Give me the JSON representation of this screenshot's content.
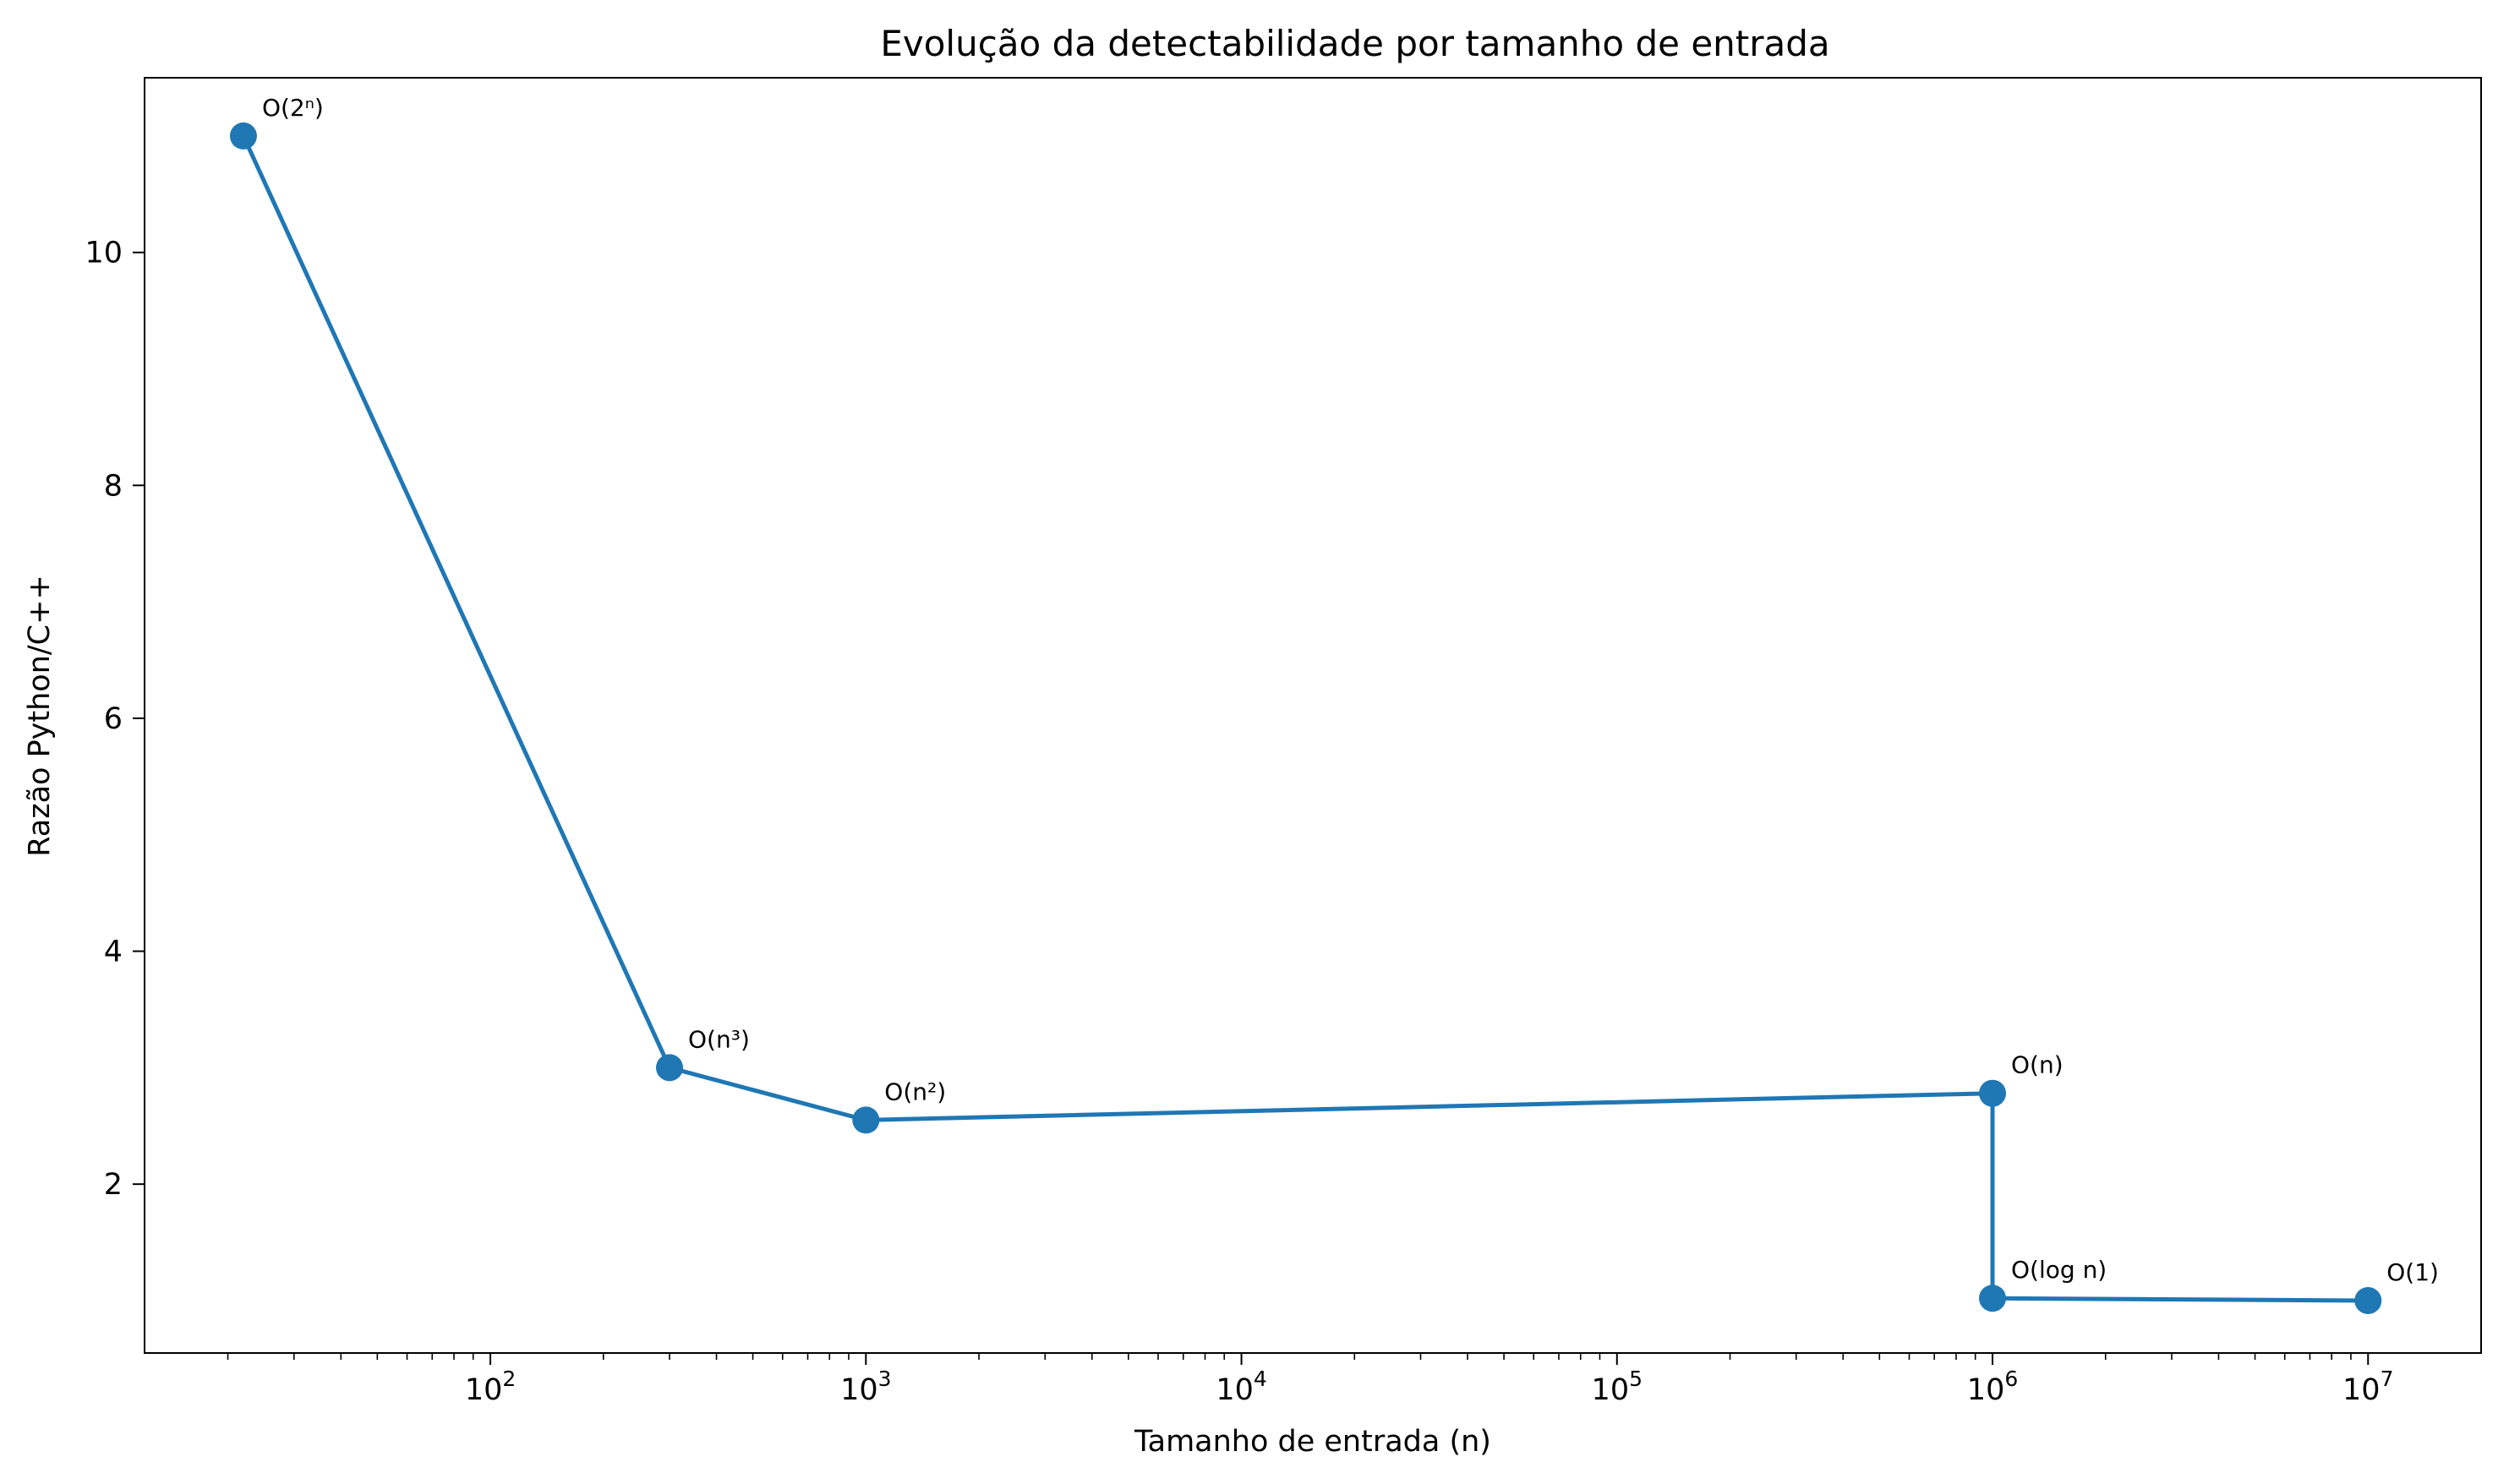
{
  "chart_data": {
    "type": "line",
    "title": "Evolução da detectabilidade por tamanho de entrada",
    "xlabel": "Tamanho de entrada (n)",
    "ylabel": "Razão Python/C++",
    "xscale": "log",
    "xlim": [
      12,
      20000000
    ],
    "ylim": [
      0.55,
      11.5
    ],
    "xticks": [
      {
        "value": 100,
        "base": "10",
        "exp": "2"
      },
      {
        "value": 1000,
        "base": "10",
        "exp": "3"
      },
      {
        "value": 10000,
        "base": "10",
        "exp": "4"
      },
      {
        "value": 100000,
        "base": "10",
        "exp": "5"
      },
      {
        "value": 1000000,
        "base": "10",
        "exp": "6"
      },
      {
        "value": 10000000,
        "base": "10",
        "exp": "7"
      }
    ],
    "yticks": [
      {
        "value": 2,
        "label": "2"
      },
      {
        "value": 4,
        "label": "4"
      },
      {
        "value": 6,
        "label": "6"
      },
      {
        "value": 8,
        "label": "8"
      },
      {
        "value": 10,
        "label": "10"
      }
    ],
    "grid": false,
    "color": "#1f77b4",
    "series": [
      {
        "points": [
          {
            "x": 22,
            "y": 11.0,
            "label": "O(2ⁿ)"
          },
          {
            "x": 300,
            "y": 3.0,
            "label": "O(n³)"
          },
          {
            "x": 1000,
            "y": 2.55,
            "label": "O(n²)"
          },
          {
            "x": 1000000,
            "y": 2.78,
            "label": "O(n)"
          },
          {
            "x": 1000000,
            "y": 1.02,
            "label": "O(log n)"
          },
          {
            "x": 10000000,
            "y": 1.0,
            "label": "O(1)"
          }
        ]
      }
    ]
  }
}
